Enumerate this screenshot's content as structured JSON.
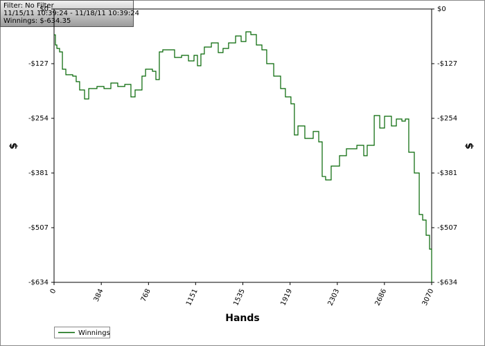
{
  "chart_data": {
    "type": "line",
    "annotations": [
      "Filter: No Filter",
      "11/15/11 10:39:24 - 11/18/11 10:39:24",
      "Winnings: $-634.35"
    ],
    "x_label": "Hands",
    "y_label": "$",
    "y2_label": "$",
    "x": [
      0,
      11,
      23,
      45,
      68,
      96,
      152,
      180,
      208,
      248,
      282,
      349,
      406,
      462,
      518,
      575,
      625,
      659,
      715,
      744,
      800,
      828,
      856,
      884,
      941,
      980,
      1037,
      1093,
      1138,
      1166,
      1194,
      1222,
      1279,
      1335,
      1374,
      1419,
      1476,
      1521,
      1560,
      1600,
      1645,
      1690,
      1729,
      1786,
      1842,
      1881,
      1926,
      1954,
      1983,
      2039,
      2107,
      2152,
      2180,
      2208,
      2253,
      2321,
      2377,
      2462,
      2518,
      2546,
      2603,
      2648,
      2687,
      2743,
      2783,
      2828,
      2856,
      2884,
      2929,
      2969,
      2997,
      3025,
      3053,
      3070
    ],
    "series": [
      {
        "name": "Winnings",
        "color": "#006400",
        "values": [
          -60,
          -83.5,
          -91.5,
          -99.6,
          -139.7,
          -152.6,
          -155.8,
          -168.6,
          -187.9,
          -208.8,
          -184.7,
          -179.9,
          -184.7,
          -171.8,
          -179.9,
          -175,
          -204,
          -187.9,
          -155.8,
          -139.7,
          -144.5,
          -163.8,
          -99.6,
          -94.8,
          -94.8,
          -112.4,
          -107.6,
          -120.5,
          -107.6,
          -131.7,
          -104.4,
          -88.3,
          -78.7,
          -101.2,
          -91.5,
          -78.7,
          -62.6,
          -75.5,
          -53,
          -59.4,
          -83.5,
          -94.8,
          -126.9,
          -155.8,
          -184.7,
          -204,
          -220,
          -292.3,
          -271.4,
          -300.3,
          -284.3,
          -308.4,
          -388.7,
          -396.7,
          -364.6,
          -340.5,
          -324.4,
          -316.4,
          -340.5,
          -316.4,
          -247.3,
          -276.2,
          -248.9,
          -271.4,
          -255.4,
          -260.2,
          -255.4,
          -332.4,
          -380.6,
          -477,
          -489.8,
          -525.2,
          -557.3,
          -634.35
        ]
      }
    ],
    "xlim": [
      0,
      3070
    ],
    "xticks": [
      0,
      384,
      768,
      1151,
      1535,
      1919,
      2303,
      2686,
      3070
    ],
    "ylim": [
      -634.35,
      0
    ],
    "yticks": [
      {
        "value": 0,
        "label": "$0"
      },
      {
        "value": -126.87,
        "label": "-$127"
      },
      {
        "value": -253.74,
        "label": "-$254"
      },
      {
        "value": -380.61,
        "label": "-$381"
      },
      {
        "value": -507.48,
        "label": "-$507"
      },
      {
        "value": -634.35,
        "label": "-$634"
      }
    ],
    "step": true,
    "legend": "bottom-left"
  }
}
